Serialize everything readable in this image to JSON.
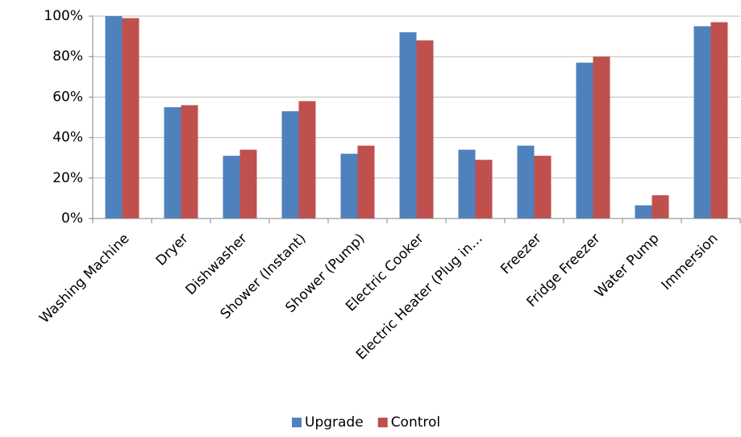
{
  "chart_data": {
    "type": "bar",
    "categories": [
      "Washing Machine",
      "Dryer",
      "Dishwasher",
      "Shower (Instant)",
      "Shower (Pump)",
      "Electric Cooker",
      "Electric Heater (Plug in…",
      "Freezer",
      "Fridge Freezer",
      "Water Pump",
      "Immersion"
    ],
    "series": [
      {
        "name": "Upgrade",
        "color": "#4f81bd",
        "values": [
          100,
          55,
          31,
          53,
          32,
          92,
          34,
          36,
          77,
          6.5,
          95
        ]
      },
      {
        "name": "Control",
        "color": "#c0504d",
        "values": [
          99,
          56,
          34,
          58,
          36,
          88,
          29,
          31,
          80,
          11.5,
          97
        ]
      }
    ],
    "ylim": [
      0,
      100
    ],
    "yticks": [
      {
        "value": 0,
        "label": "0%"
      },
      {
        "value": 20,
        "label": "20%"
      },
      {
        "value": 40,
        "label": "40%"
      },
      {
        "value": 60,
        "label": "60%"
      },
      {
        "value": 80,
        "label": "80%"
      },
      {
        "value": 100,
        "label": "100%"
      }
    ],
    "grid": true,
    "legend": "bottom"
  }
}
